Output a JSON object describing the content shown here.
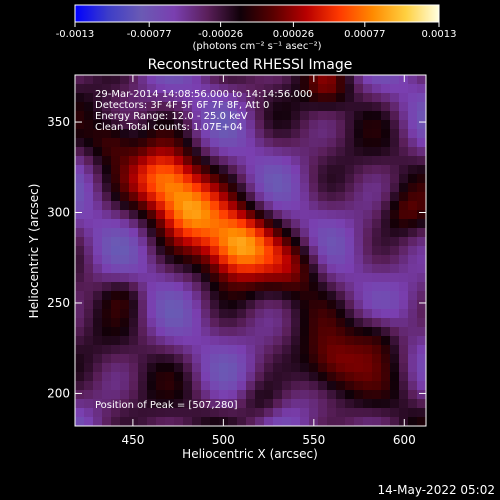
{
  "colorbar": {
    "tick_labels": [
      "-0.0013",
      "-0.00077",
      "-0.00026",
      "0.00026",
      "0.00077",
      "0.0013"
    ],
    "unit_label": "(photons cm⁻² s⁻¹ asec⁻²)",
    "range": [
      -0.0013,
      0.0013
    ],
    "palette": [
      "#0000ff",
      "#3d3dc8",
      "#6a5ab4",
      "#7a3fb0",
      "#5a1f5a",
      "#100008",
      "#5a0000",
      "#b80000",
      "#ff3a00",
      "#ff8a00",
      "#ffd040",
      "#ffffe0"
    ]
  },
  "chart_data": {
    "type": "heatmap",
    "title": "Reconstructed RHESSI Image",
    "xlabel": "Heliocentric X (arcsec)",
    "ylabel": "Heliocentric Y (arcsec)",
    "xlim": [
      418,
      612
    ],
    "ylim": [
      182,
      376
    ],
    "x_ticks": [
      450,
      500,
      550,
      600
    ],
    "y_ticks": [
      200,
      250,
      300,
      350
    ],
    "annotations": [
      "29-Mar-2014 14:08:56.000 to 14:14:56.000",
      "Detectors: 3F 4F 5F 6F 7F 8F, Att 0",
      "Energy Range: 12.0 - 25.0 keV",
      "Clean    Total counts: 1.07E+04"
    ],
    "peak_label": "Position of Peak = [507,280]",
    "peak": [
      507,
      280
    ],
    "sources": [
      {
        "x": 507,
        "y": 282,
        "flux": 0.00125,
        "sigma": 14
      },
      {
        "x": 468,
        "y": 318,
        "flux": 0.00105,
        "sigma": 13
      },
      {
        "x": 482,
        "y": 300,
        "flux": 0.0008,
        "sigma": 12
      },
      {
        "x": 540,
        "y": 270,
        "flux": 0.00045,
        "sigma": 11
      },
      {
        "x": 560,
        "y": 215,
        "flux": 0.00055,
        "sigma": 12
      },
      {
        "x": 585,
        "y": 232,
        "flux": 0.0004,
        "sigma": 10
      },
      {
        "x": 520,
        "y": 195,
        "flux": 0.00035,
        "sigma": 9
      },
      {
        "x": 438,
        "y": 340,
        "flux": 0.00035,
        "sigma": 9
      },
      {
        "x": 558,
        "y": 370,
        "flux": 0.0004,
        "sigma": 9
      },
      {
        "x": 600,
        "y": 300,
        "flux": 0.0003,
        "sigma": 8
      },
      {
        "x": 445,
        "y": 255,
        "flux": 0.00025,
        "sigma": 8
      }
    ],
    "background_level": -0.0004
  },
  "footer": {
    "timestamp": "14-May-2022 05:02"
  }
}
